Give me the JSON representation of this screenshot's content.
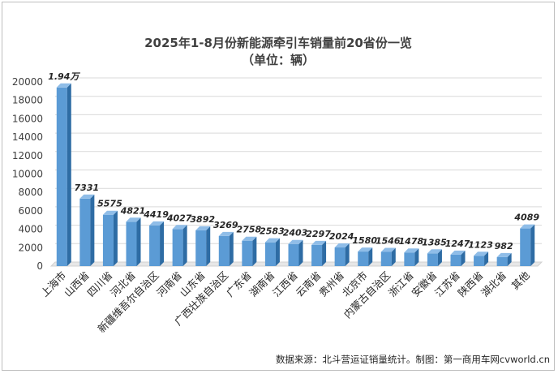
{
  "chart_data": {
    "type": "bar",
    "title": "2025年1-8月份新能源牵引车销量前20省份一览",
    "subtitle": "（单位：辆）",
    "categories": [
      "上海市",
      "山西省",
      "四川省",
      "河北省",
      "新疆维吾尔自治区",
      "河南省",
      "山东省",
      "广西壮族自治区",
      "广东省",
      "湖南省",
      "江西省",
      "云南省",
      "贵州省",
      "北京市",
      "内蒙古自治区",
      "浙江省",
      "安徽省",
      "江苏省",
      "陕西省",
      "湖北省",
      "其他"
    ],
    "values": [
      19400,
      7331,
      5575,
      4821,
      4419,
      4027,
      3892,
      3269,
      2758,
      2583,
      2403,
      2297,
      2024,
      1580,
      1546,
      1478,
      1385,
      1247,
      1123,
      982,
      4089
    ],
    "data_labels": [
      "1.94万",
      "7331",
      "5575",
      "4821",
      "4419",
      "4027",
      "3892",
      "3269",
      "2758",
      "2583",
      "2403",
      "2297",
      "2024",
      "1580",
      "1546",
      "1478",
      "1385",
      "1247",
      "1123",
      "982",
      "4089"
    ],
    "yticks": [
      "0",
      "2000",
      "4000",
      "6000",
      "8000",
      "10000",
      "12000",
      "14000",
      "16000",
      "18000",
      "20000"
    ],
    "ylim": [
      0,
      20000
    ],
    "grid": true,
    "bar_color": "#5b9bd5",
    "bar_side_color": "#2e6ca4",
    "bar_top_color": "#8fbde8"
  },
  "footer": {
    "source": "数据来源：北斗营运证销量统计。制图：第一商用车网cvworld.cn"
  }
}
